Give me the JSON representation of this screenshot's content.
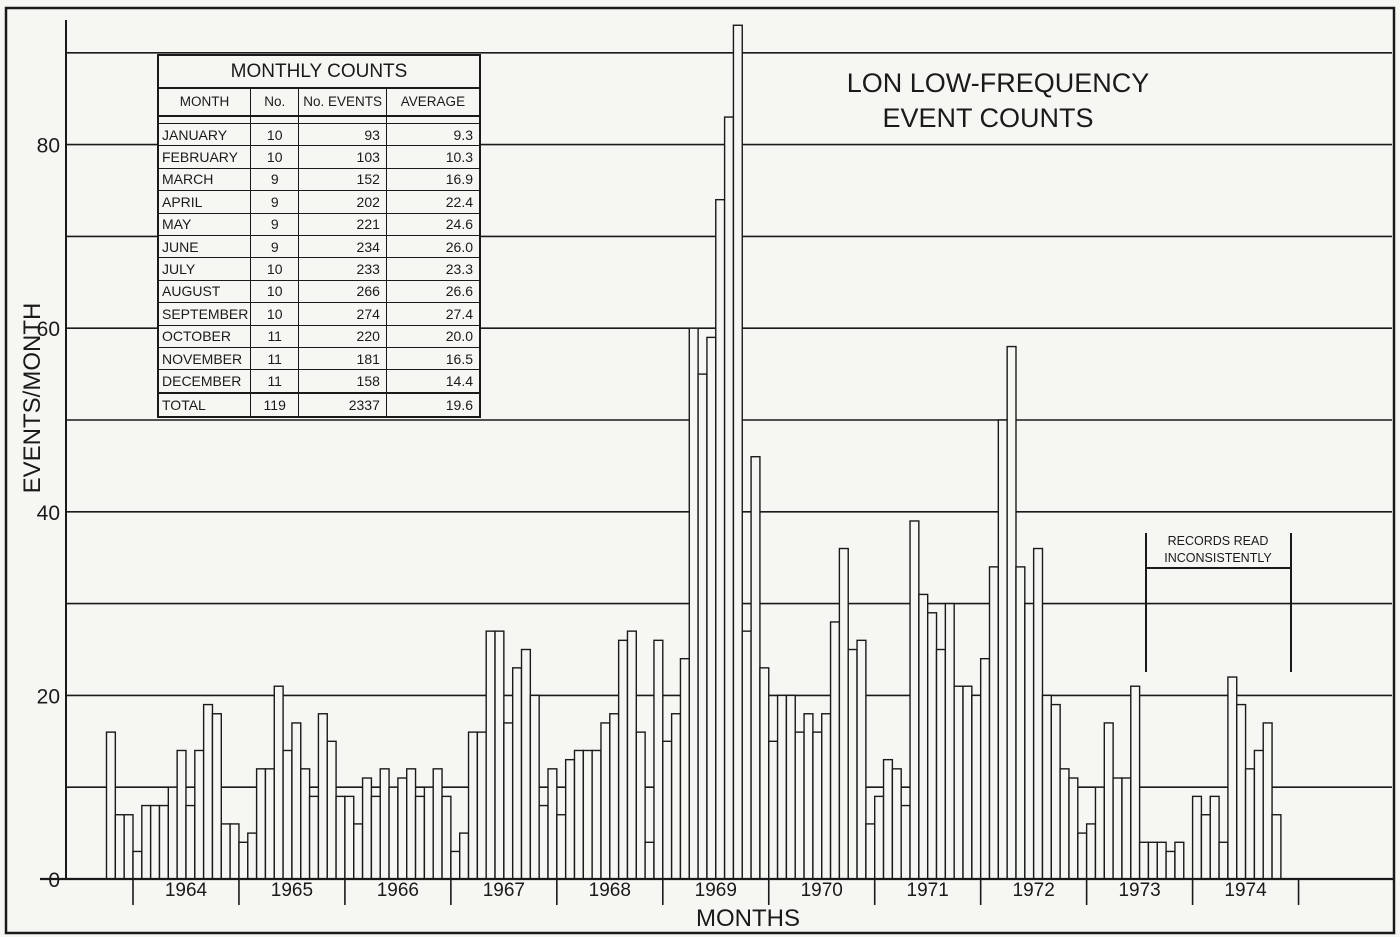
{
  "chart_data": {
    "type": "bar",
    "title": "LON LOW-FREQUENCY EVENT COUNTS",
    "xlabel": "MONTHS",
    "ylabel": "EVENTS/MONTH",
    "ylim": [
      0,
      90
    ],
    "yticks": [
      0,
      20,
      40,
      60,
      80
    ],
    "grid": true,
    "year_labels": [
      "1964",
      "1965",
      "1966",
      "1967",
      "1968",
      "1969",
      "1970",
      "1971",
      "1972",
      "1973",
      "1974"
    ],
    "first_month": "1963-10",
    "values": [
      16,
      7,
      7,
      3,
      8,
      8,
      8,
      10,
      14,
      8,
      14,
      19,
      18,
      6,
      6,
      4,
      5,
      12,
      12,
      21,
      14,
      17,
      12,
      9,
      18,
      15,
      9,
      9,
      6,
      11,
      9,
      12,
      10,
      11,
      12,
      9,
      10,
      12,
      9,
      3,
      5,
      16,
      16,
      27,
      27,
      17,
      23,
      25,
      20,
      8,
      12,
      7,
      13,
      14,
      14,
      14,
      17,
      18,
      26,
      27,
      16,
      4,
      26,
      15,
      18,
      24,
      60,
      55,
      59,
      74,
      83,
      93,
      27,
      46,
      23,
      15,
      20,
      20,
      16,
      18,
      16,
      18,
      28,
      36,
      25,
      26,
      6,
      9,
      13,
      12,
      8,
      39,
      31,
      29,
      25,
      30,
      21,
      21,
      20,
      24,
      34,
      50,
      58,
      34,
      30,
      36,
      20,
      19,
      12,
      11,
      5,
      6,
      10,
      17,
      11,
      11,
      21,
      4,
      4,
      4,
      3,
      4,
      0,
      9,
      7,
      9,
      4,
      22,
      19,
      12,
      14,
      17,
      7
    ],
    "annotation": "RECORDS READ INCONSISTENTLY"
  },
  "table": {
    "caption": "MONTHLY COUNTS",
    "headers": [
      "MONTH",
      "No.",
      "No. EVENTS",
      "AVERAGE"
    ],
    "rows": [
      [
        "JANUARY",
        "10",
        "93",
        "9.3"
      ],
      [
        "FEBRUARY",
        "10",
        "103",
        "10.3"
      ],
      [
        "MARCH",
        "9",
        "152",
        "16.9"
      ],
      [
        "APRIL",
        "9",
        "202",
        "22.4"
      ],
      [
        "MAY",
        "9",
        "221",
        "24.6"
      ],
      [
        "JUNE",
        "9",
        "234",
        "26.0"
      ],
      [
        "JULY",
        "10",
        "233",
        "23.3"
      ],
      [
        "AUGUST",
        "10",
        "266",
        "26.6"
      ],
      [
        "SEPTEMBER",
        "10",
        "274",
        "27.4"
      ],
      [
        "OCTOBER",
        "11",
        "220",
        "20.0"
      ],
      [
        "NOVEMBER",
        "11",
        "181",
        "16.5"
      ],
      [
        "DECEMBER",
        "11",
        "158",
        "14.4"
      ]
    ],
    "total": [
      "TOTAL",
      "119",
      "2337",
      "19.6"
    ]
  }
}
